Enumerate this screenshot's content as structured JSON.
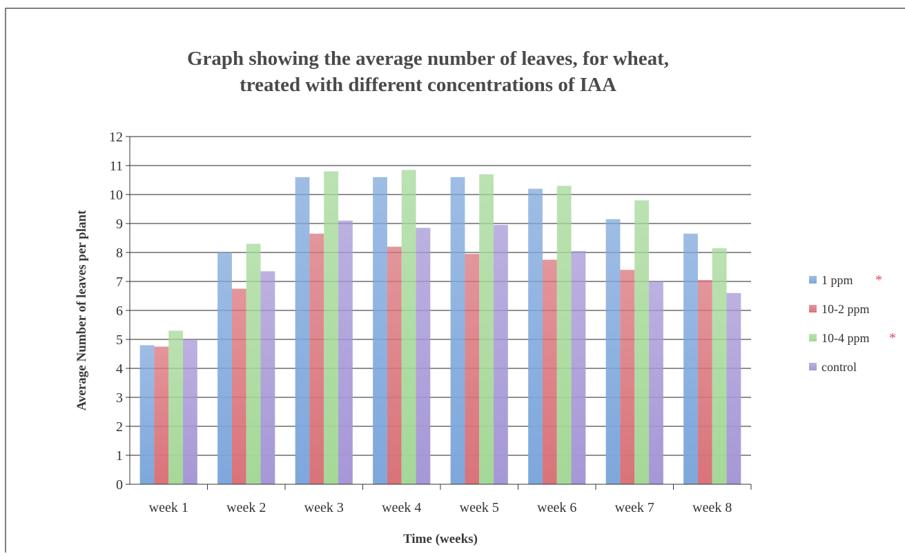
{
  "chart_data": {
    "type": "bar",
    "title": "Graph showing the average number of leaves, for wheat,",
    "subtitle": "treated with different concentrations of IAA",
    "x_label": "Time (weeks)",
    "y_label": "Average Number of leaves per plant",
    "categories": [
      "week 1",
      "week 2",
      "week 3",
      "week 4",
      "week 5",
      "week 6",
      "week 7",
      "week 8"
    ],
    "series": [
      {
        "name": "1 ppm",
        "color": "#7ea7dc",
        "values": [
          4.8,
          8.0,
          10.6,
          10.6,
          10.6,
          10.2,
          9.15,
          8.65
        ]
      },
      {
        "name": "10-2 ppm",
        "color": "#d9737a",
        "values": [
          4.75,
          6.75,
          8.65,
          8.2,
          7.95,
          7.75,
          7.4,
          7.05
        ]
      },
      {
        "name": "10-4 ppm",
        "color": "#a5d898",
        "values": [
          5.3,
          8.3,
          10.8,
          10.85,
          10.7,
          10.3,
          9.8,
          8.15
        ]
      },
      {
        "name": "control",
        "color": "#a697d6",
        "values": [
          5.0,
          7.35,
          9.1,
          8.85,
          8.95,
          8.05,
          7.0,
          6.6
        ]
      }
    ],
    "ylim": [
      0,
      12
    ],
    "yticks": [
      0,
      1,
      2,
      3,
      4,
      5,
      6,
      7,
      8,
      9,
      10,
      11,
      12
    ],
    "grid": true,
    "legend": "right"
  }
}
